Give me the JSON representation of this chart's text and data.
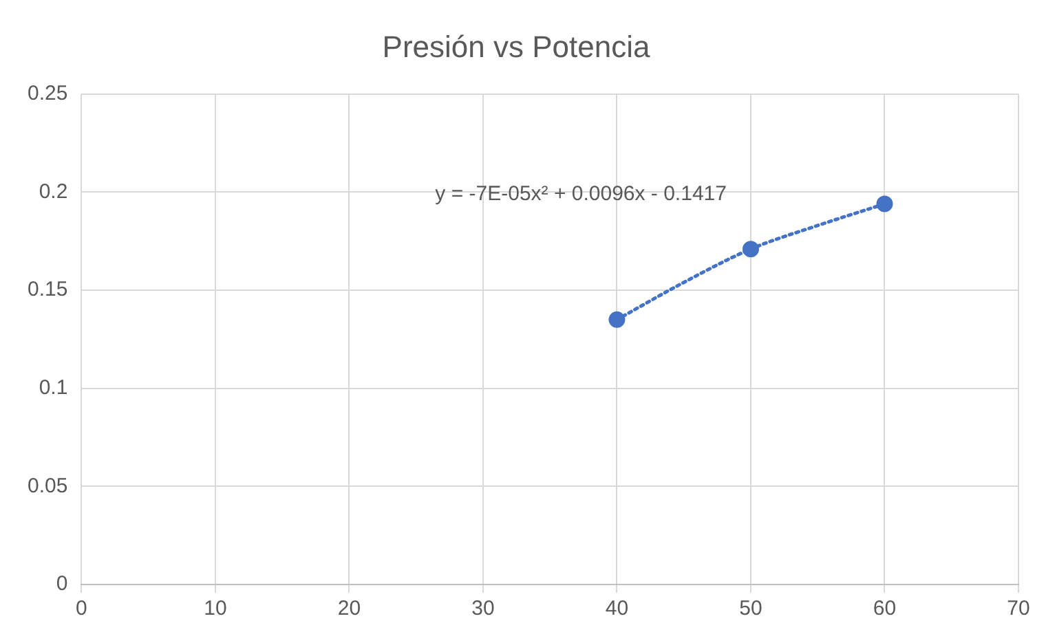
{
  "chart_data": {
    "type": "scatter",
    "title": "Presión vs Potencia",
    "series": [
      {
        "color": "#4472c4",
        "x": [
          40,
          50,
          60
        ],
        "values": [
          0.135,
          0.171,
          0.194
        ],
        "marker": "circle"
      },
      {
        "type": "line",
        "color": "#4472c4",
        "x": [
          40,
          45,
          50,
          55,
          60
        ],
        "values": [
          0.135,
          0.154,
          0.171,
          0.183,
          0.194
        ],
        "marker": "none",
        "line_style": "dotted"
      }
    ],
    "xlim": [
      0,
      70
    ],
    "xticks": [
      0,
      10,
      20,
      30,
      40,
      50,
      60,
      70
    ],
    "ylim": [
      0,
      0.25
    ],
    "yticks": [
      0,
      0.05,
      0.1,
      0.15,
      0.2,
      0.25
    ],
    "grid": true,
    "legend": false,
    "annotations": [
      "y = -7E-05x² + 0.0096x - 0.1417"
    ]
  }
}
